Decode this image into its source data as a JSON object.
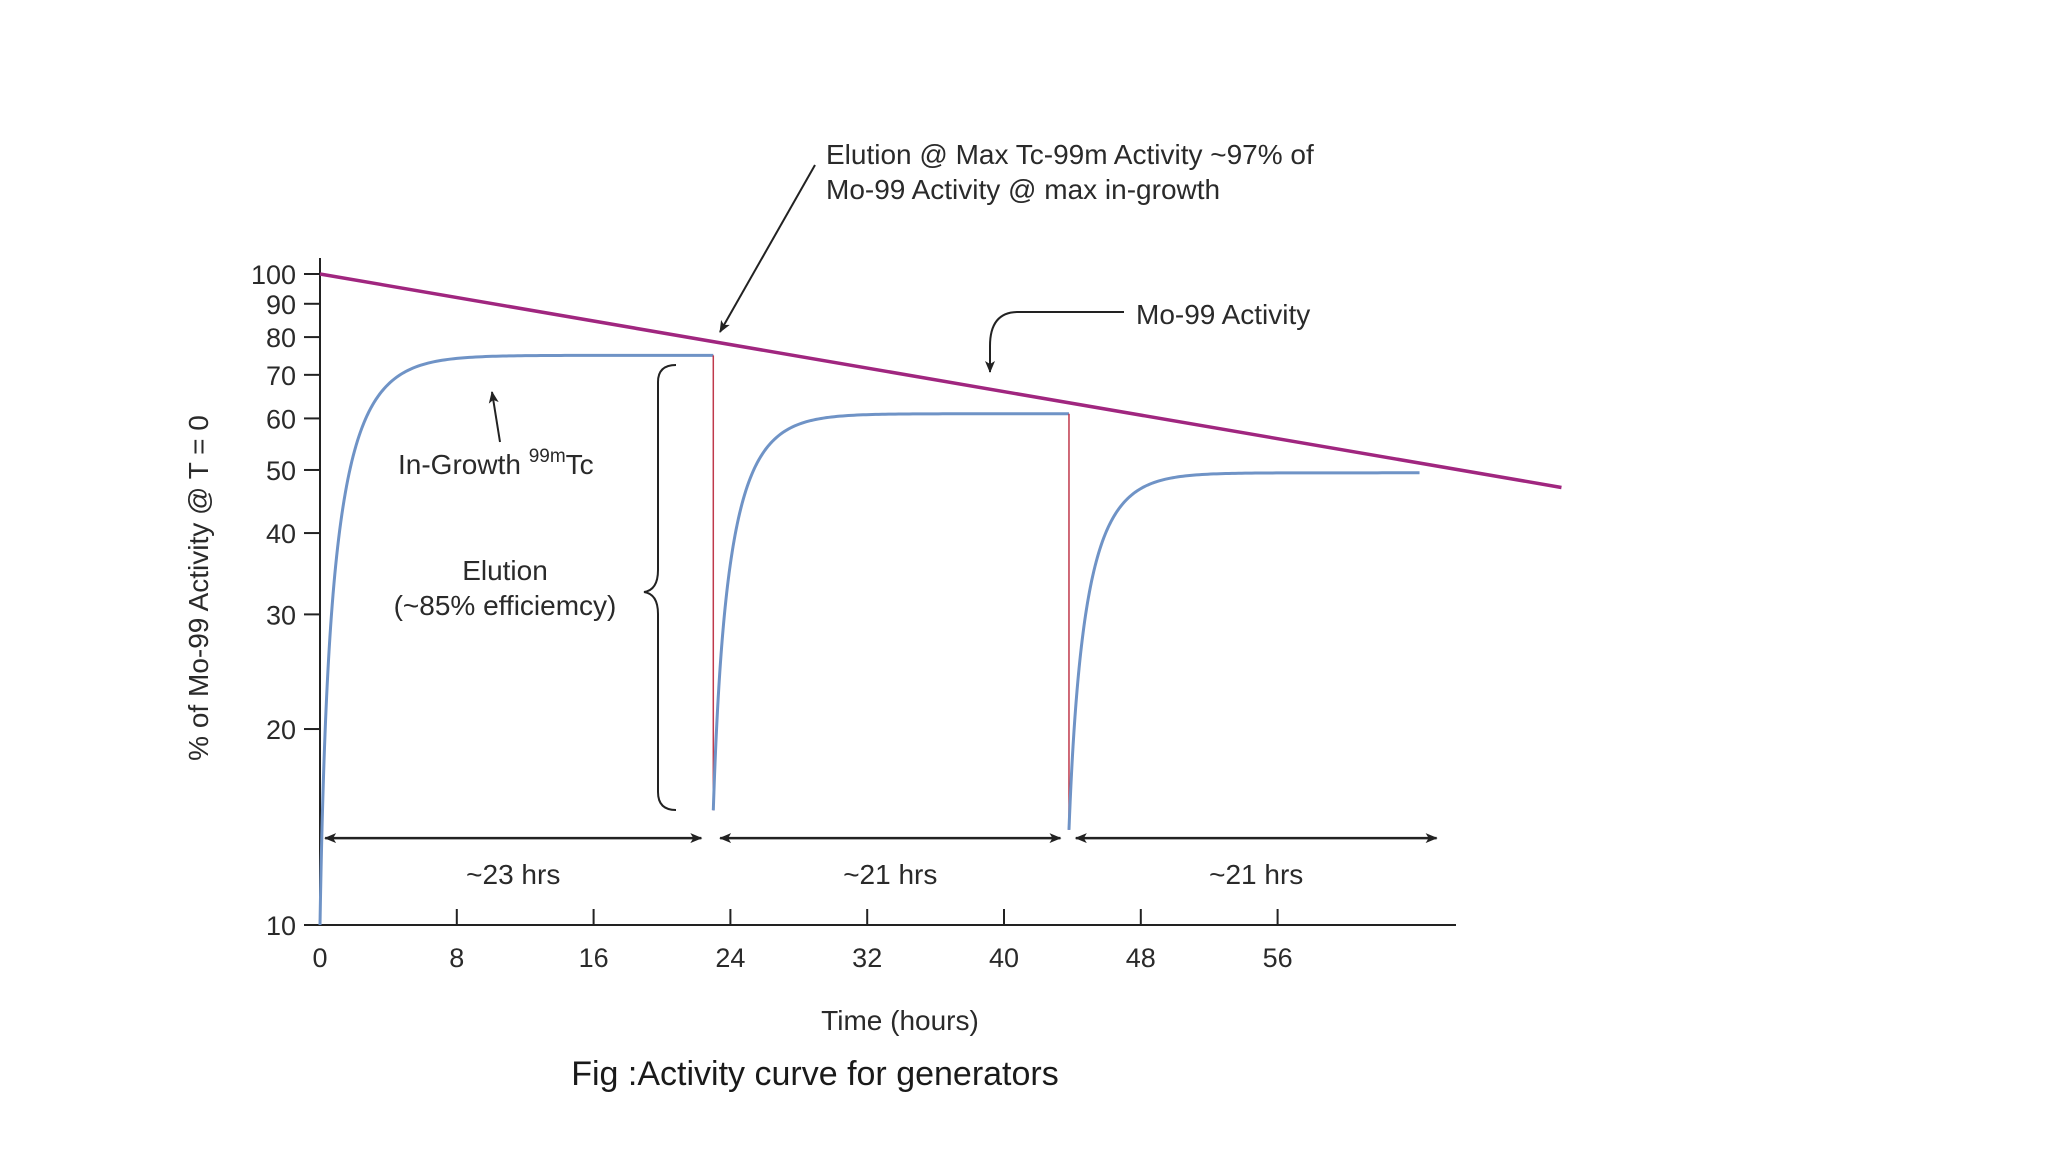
{
  "chart_data": {
    "type": "line",
    "title": "",
    "caption": "Fig :Activity curve for generators",
    "xlabel": "Time (hours)",
    "ylabel": "% of Mo-99 Activity @ T = 0",
    "y_scale": "log",
    "xlim": [
      0,
      67
    ],
    "ylim": [
      10,
      100
    ],
    "x_ticks": [
      0,
      8,
      16,
      24,
      32,
      40,
      48,
      56
    ],
    "y_ticks": [
      10,
      20,
      30,
      40,
      50,
      60,
      70,
      80,
      90,
      100
    ],
    "grid": false,
    "colors": {
      "mo99": "#a0267f",
      "tc99m": "#6f93c6",
      "elution_line": "#c0394b",
      "ink": "#222222"
    },
    "series": [
      {
        "name": "Mo-99 Activity",
        "x": [
          0,
          72.6
        ],
        "y": [
          100,
          47
        ]
      },
      {
        "name": "In-Growth 99mTc",
        "segments": [
          {
            "x_start": 0,
            "x_end": 23,
            "y_start": 10,
            "y_max": 75,
            "y_min_after_elution": 15
          },
          {
            "x_start": 23,
            "x_end": 43.8,
            "y_start": 15,
            "y_max": 61,
            "y_min_after_elution": 14
          },
          {
            "x_start": 43.8,
            "x_end": 64.3,
            "y_start": 14,
            "y_max": 49.5
          }
        ]
      }
    ],
    "intervals": [
      {
        "x_start": 0.3,
        "x_end": 22.3,
        "y": 13.6,
        "label": "~23 hrs"
      },
      {
        "x_start": 23.4,
        "x_end": 43.3,
        "y": 13.6,
        "label": "~21 hrs"
      },
      {
        "x_start": 44.2,
        "x_end": 65.3,
        "y": 13.6,
        "label": "~21 hrs"
      }
    ],
    "annotations": {
      "elution_max_line1": "Elution @ Max Tc-99m Activity ~97% of",
      "elution_max_line2": "Mo-99 Activity @ max in-growth",
      "mo99_label": "Mo-99 Activity",
      "ingrowth_label": "In-Growth ",
      "ingrowth_sup": "99m",
      "ingrowth_suffix": "Tc",
      "elution_line1": "Elution",
      "elution_line2": "(~85% efficiemcy)"
    }
  }
}
